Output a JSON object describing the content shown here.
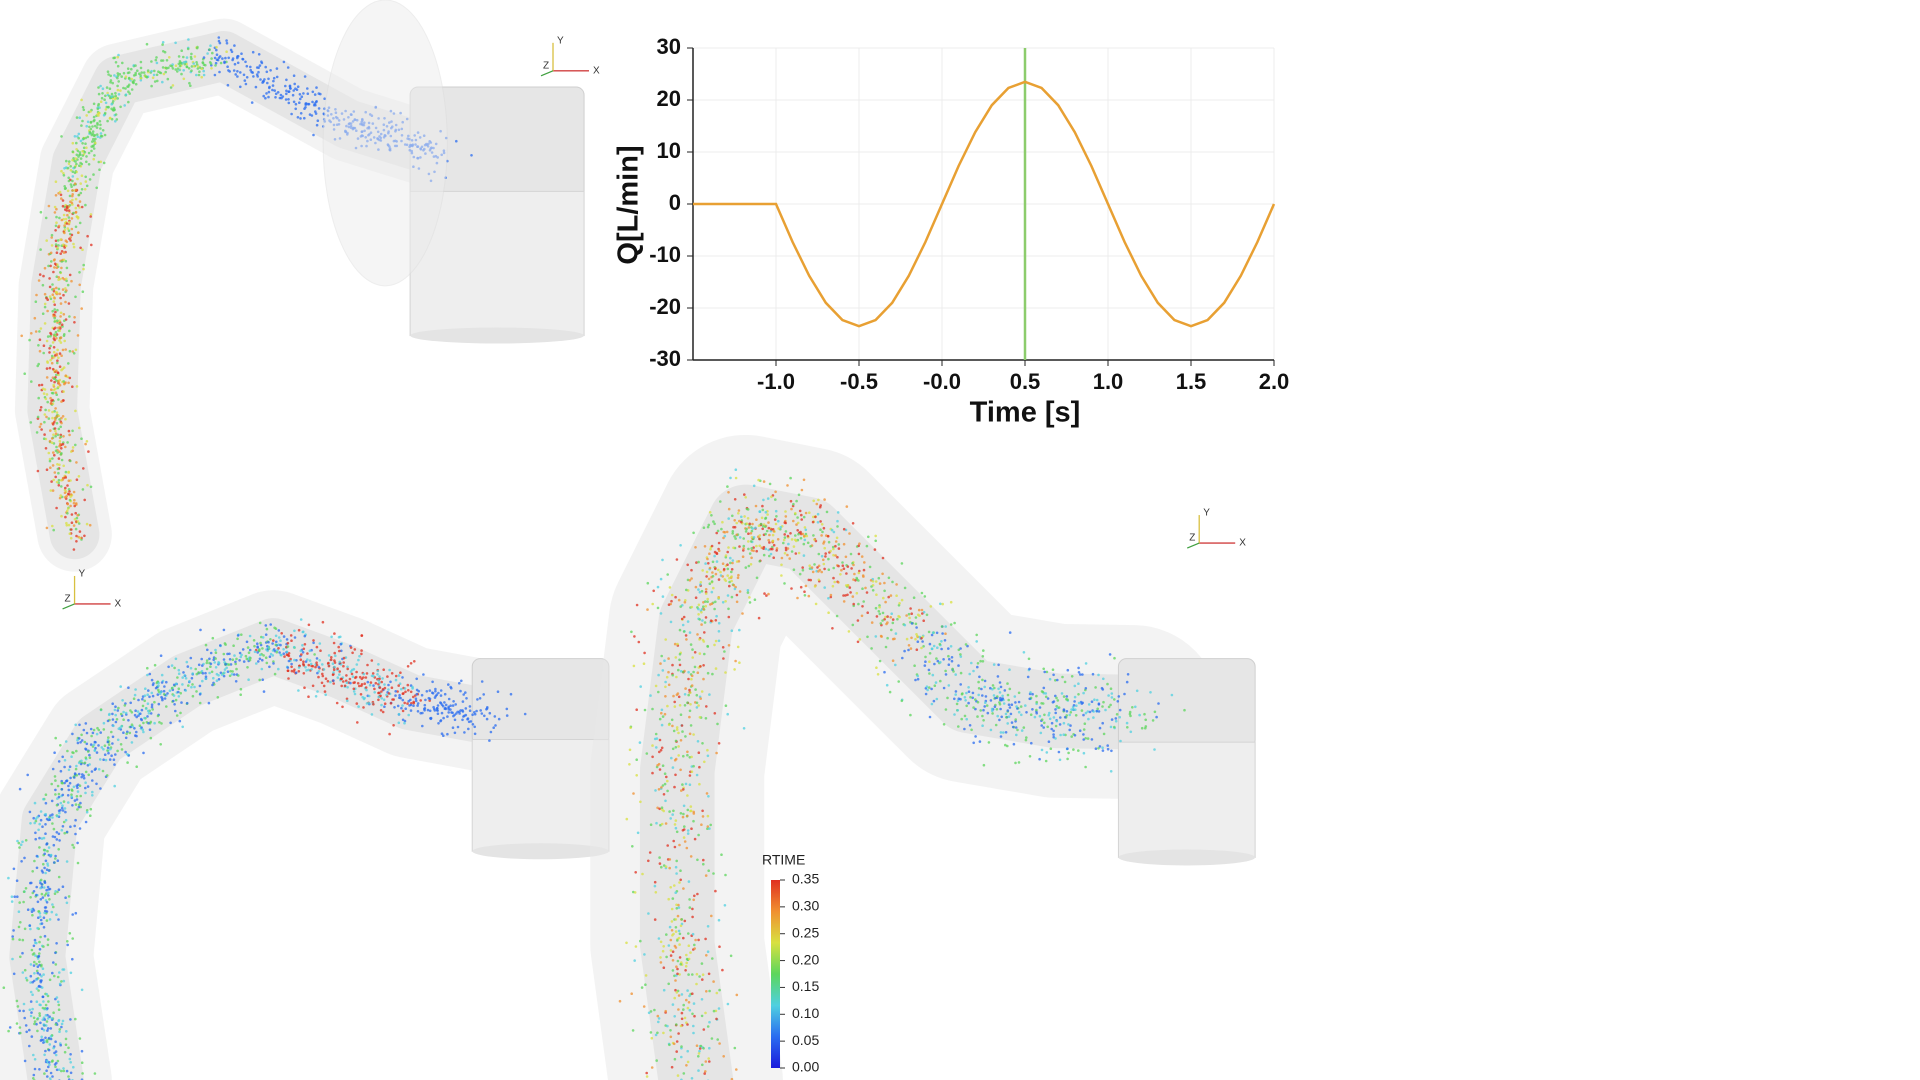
{
  "chart_data": {
    "type": "line",
    "xlabel": "Time [s]",
    "ylabel": "Q[L/min]",
    "x": [
      -1.5,
      -1.4,
      -1.3,
      -1.2,
      -1.1,
      -1.0,
      -0.9,
      -0.8,
      -0.7,
      -0.6,
      -0.5,
      -0.4,
      -0.3,
      -0.2,
      -0.1,
      0.0,
      0.1,
      0.2,
      0.3,
      0.4,
      0.5,
      0.6,
      0.7,
      0.8,
      0.9,
      1.0,
      1.1,
      1.2,
      1.3,
      1.4,
      1.5,
      1.6,
      1.7,
      1.8,
      1.9,
      2.0
    ],
    "series": [
      {
        "color": "#e8a033",
        "values": [
          0,
          0,
          0,
          0,
          0,
          0,
          -7.3,
          -13.8,
          -19.0,
          -22.3,
          -23.5,
          -22.3,
          -19.0,
          -13.8,
          -7.3,
          0,
          7.3,
          13.8,
          19.0,
          22.3,
          23.5,
          22.3,
          19.0,
          13.8,
          7.3,
          0,
          -7.3,
          -13.8,
          -19.0,
          -22.3,
          -23.5,
          -22.3,
          -19.0,
          -13.8,
          -7.3,
          0
        ]
      }
    ],
    "marker_x": 0.5,
    "marker_color": "#8ccc6c",
    "xlim": [
      -1.5,
      2.0
    ],
    "xticks": [
      {
        "value": -1.0,
        "label": "-1.0"
      },
      {
        "value": -0.5,
        "label": "-0.5"
      },
      {
        "value": 0,
        "label": "-0.0"
      },
      {
        "value": 0.5,
        "label": "0.5"
      },
      {
        "value": 1.0,
        "label": "1.0"
      },
      {
        "value": 1.5,
        "label": "1.5"
      },
      {
        "value": 2.0,
        "label": "2.0"
      }
    ],
    "ylim": [
      -30,
      30
    ],
    "yticks": [
      -30,
      -20,
      -10,
      0,
      10,
      20,
      30
    ],
    "grid": true
  },
  "colorbar": {
    "title": "RTIME",
    "range": [
      0,
      0.35
    ],
    "ticks": [
      {
        "value": 0,
        "label": "0.00"
      },
      0.05,
      {
        "value": 0.1,
        "label": "0.10"
      },
      0.15,
      {
        "value": 0.2,
        "label": "0.20"
      },
      0.25,
      {
        "value": 0.3,
        "label": "0.30"
      },
      0.35
    ]
  },
  "axes_triads": [
    {
      "x": "X",
      "y": "Y",
      "z": "Z"
    },
    {
      "x": "X",
      "y": "Y",
      "z": "Z"
    },
    {
      "x": "X",
      "y": "Y",
      "z": "Z"
    }
  ]
}
